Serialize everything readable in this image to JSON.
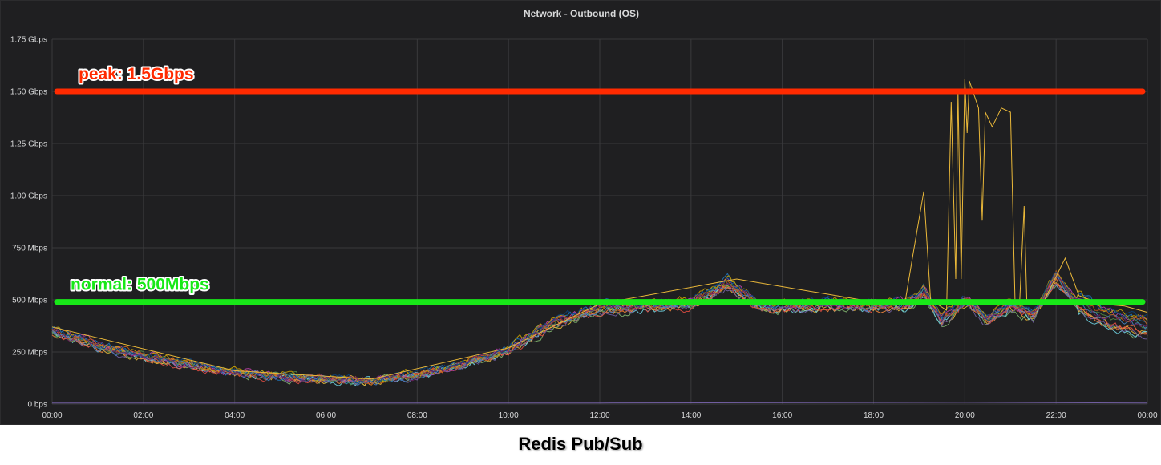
{
  "panel": {
    "title": "Network - Outbound (OS)"
  },
  "caption": "Redis Pub/Sub",
  "chart_data": {
    "type": "line",
    "title": "Network - Outbound (OS)",
    "y_ticks": [
      "0 bps",
      "250 Mbps",
      "500 Mbps",
      "750 Mbps",
      "1.00 Gbps",
      "1.25 Gbps",
      "1.50 Gbps",
      "1.75 Gbps"
    ],
    "y_tick_values_mbps": [
      0,
      250,
      500,
      750,
      1000,
      1250,
      1500,
      1750
    ],
    "x_ticks": [
      "00:00",
      "02:00",
      "04:00",
      "06:00",
      "08:00",
      "10:00",
      "12:00",
      "14:00",
      "16:00",
      "18:00",
      "20:00",
      "22:00",
      "00:00"
    ],
    "xlim_hours": [
      0,
      24
    ],
    "ylim_mbps": [
      0,
      1750
    ],
    "grid": true,
    "series_colors": [
      "#7EB26D",
      "#EAB839",
      "#6ED0E0",
      "#EF843C",
      "#E24D42",
      "#1F78C1",
      "#BA43A9",
      "#705DA0",
      "#508642",
      "#CCA300",
      "#447EBC",
      "#C15C17",
      "#0A437C",
      "#6D1F62"
    ],
    "typical_series_mbps": [
      [
        0,
        350
      ],
      [
        1,
        280
      ],
      [
        2,
        230
      ],
      [
        3,
        190
      ],
      [
        4,
        150
      ],
      [
        5,
        130
      ],
      [
        6,
        120
      ],
      [
        7,
        110
      ],
      [
        8,
        140
      ],
      [
        9,
        190
      ],
      [
        9.6,
        230
      ],
      [
        10,
        260
      ],
      [
        11,
        390
      ],
      [
        12,
        460
      ],
      [
        13,
        470
      ],
      [
        14,
        480
      ],
      [
        14.8,
        580
      ],
      [
        15.2,
        520
      ],
      [
        15.5,
        470
      ],
      [
        16,
        470
      ],
      [
        17,
        480
      ],
      [
        18,
        470
      ],
      [
        18.8,
        480
      ],
      [
        19.1,
        540
      ],
      [
        19.5,
        400
      ],
      [
        20,
        500
      ],
      [
        20.5,
        400
      ],
      [
        21,
        480
      ],
      [
        21.5,
        420
      ],
      [
        22,
        610
      ],
      [
        22.4,
        500
      ],
      [
        23,
        420
      ],
      [
        24,
        370
      ]
    ],
    "outlier_series_mbps": [
      [
        0,
        370
      ],
      [
        4,
        160
      ],
      [
        7,
        120
      ],
      [
        10,
        270
      ],
      [
        12,
        480
      ],
      [
        15,
        600
      ],
      [
        18,
        490
      ],
      [
        18.7,
        500
      ],
      [
        18.85,
        700
      ],
      [
        19.1,
        1020
      ],
      [
        19.25,
        500
      ],
      [
        19.6,
        450
      ],
      [
        19.7,
        1450
      ],
      [
        19.8,
        600
      ],
      [
        19.85,
        1500
      ],
      [
        19.92,
        600
      ],
      [
        20.0,
        1560
      ],
      [
        20.05,
        1300
      ],
      [
        20.1,
        1550
      ],
      [
        20.3,
        1420
      ],
      [
        20.38,
        880
      ],
      [
        20.45,
        1400
      ],
      [
        20.6,
        1330
      ],
      [
        20.8,
        1420
      ],
      [
        21.0,
        1400
      ],
      [
        21.1,
        500
      ],
      [
        21.2,
        480
      ],
      [
        21.3,
        950
      ],
      [
        21.36,
        480
      ],
      [
        21.7,
        480
      ],
      [
        22.2,
        700
      ],
      [
        22.5,
        520
      ],
      [
        23,
        480
      ],
      [
        23.5,
        470
      ],
      [
        24,
        440
      ]
    ],
    "near_zero_series_mbps": [
      [
        0,
        5
      ],
      [
        12,
        5
      ],
      [
        20,
        8
      ],
      [
        24,
        5
      ]
    ],
    "annotations": [
      {
        "label": "peak: 1.5Gbps",
        "value_mbps": 1500,
        "color": "#ff2a00"
      },
      {
        "label": "normal: 500Mbps",
        "value_mbps": 490,
        "color": "#18e818"
      }
    ]
  }
}
